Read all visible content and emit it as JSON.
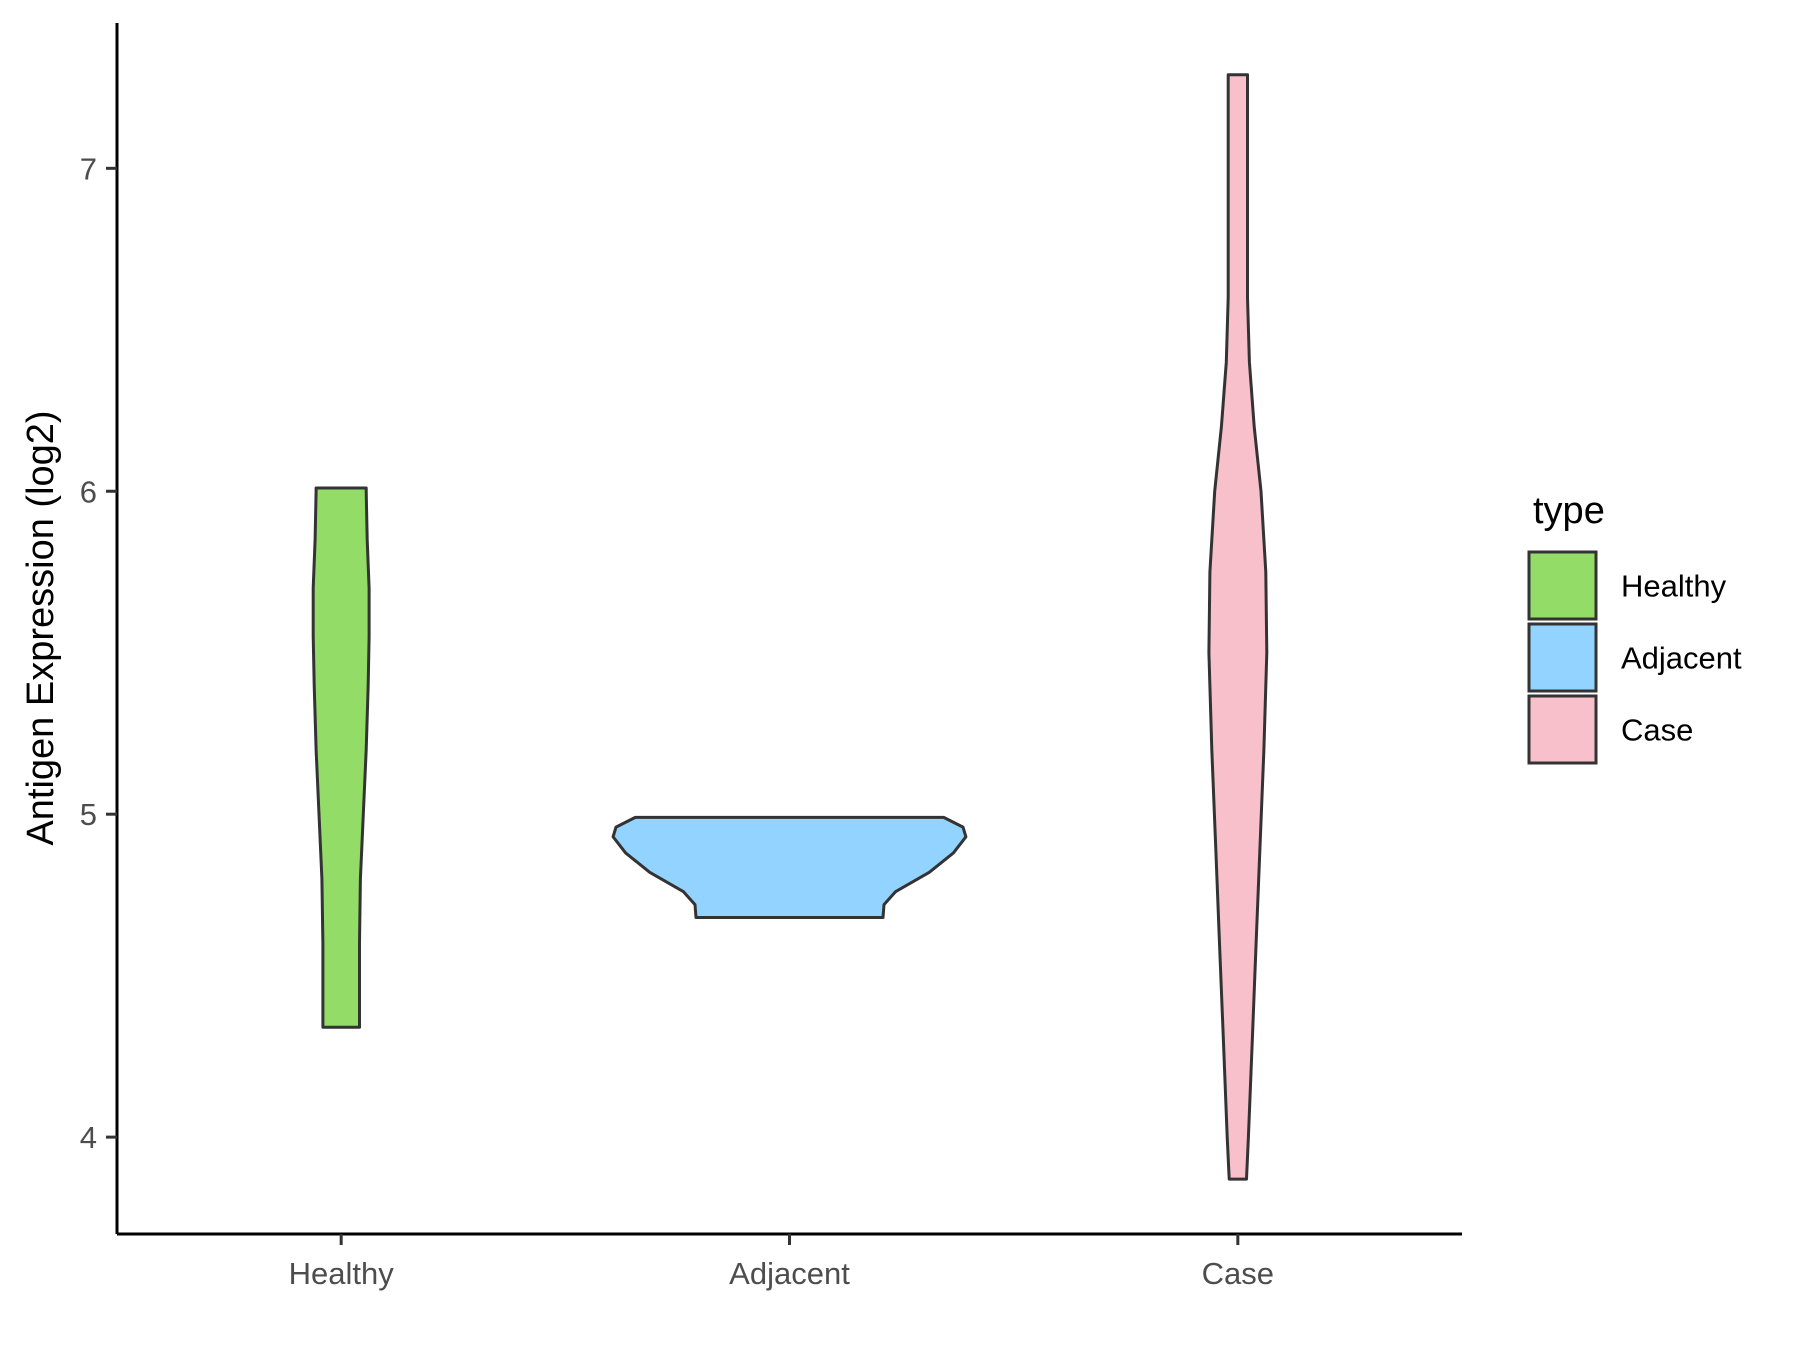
{
  "chart_data": {
    "type": "violin",
    "title": "",
    "xlabel": "",
    "ylabel": "Antigen Expression (log2)",
    "categories": [
      "Healthy",
      "Adjacent",
      "Case"
    ],
    "ylim": [
      3.7,
      7.45
    ],
    "yticks": [
      4,
      5,
      6,
      7
    ],
    "colors": {
      "Healthy": "#93dc67",
      "Adjacent": "#93d3ff",
      "Case": "#f7c0cb"
    },
    "series": [
      {
        "name": "Healthy",
        "min": 4.34,
        "max": 6.01,
        "density": [
          [
            4.34,
            0.19
          ],
          [
            4.6,
            0.19
          ],
          [
            4.8,
            0.2
          ],
          [
            5.0,
            0.23
          ],
          [
            5.2,
            0.26
          ],
          [
            5.4,
            0.28
          ],
          [
            5.55,
            0.29
          ],
          [
            5.7,
            0.29
          ],
          [
            5.85,
            0.27
          ],
          [
            6.0,
            0.26
          ],
          [
            6.01,
            0.26
          ]
        ]
      },
      {
        "name": "Adjacent",
        "min": 4.68,
        "max": 4.99,
        "density": [
          [
            4.68,
            0.97
          ],
          [
            4.72,
            0.98
          ],
          [
            4.76,
            1.1
          ],
          [
            4.82,
            1.45
          ],
          [
            4.88,
            1.7
          ],
          [
            4.93,
            1.83
          ],
          [
            4.96,
            1.8
          ],
          [
            4.99,
            1.6
          ]
        ]
      },
      {
        "name": "Case",
        "min": 3.87,
        "max": 7.29,
        "density": [
          [
            3.87,
            0.09
          ],
          [
            4.0,
            0.11
          ],
          [
            4.3,
            0.15
          ],
          [
            4.6,
            0.19
          ],
          [
            4.9,
            0.23
          ],
          [
            5.2,
            0.27
          ],
          [
            5.5,
            0.3
          ],
          [
            5.75,
            0.29
          ],
          [
            6.0,
            0.24
          ],
          [
            6.2,
            0.17
          ],
          [
            6.4,
            0.12
          ],
          [
            6.6,
            0.1
          ],
          [
            6.8,
            0.1
          ],
          [
            7.0,
            0.1
          ],
          [
            7.29,
            0.1
          ]
        ]
      }
    ],
    "legend": {
      "title": "type",
      "position": "right",
      "entries": [
        "Healthy",
        "Adjacent",
        "Case"
      ]
    }
  }
}
